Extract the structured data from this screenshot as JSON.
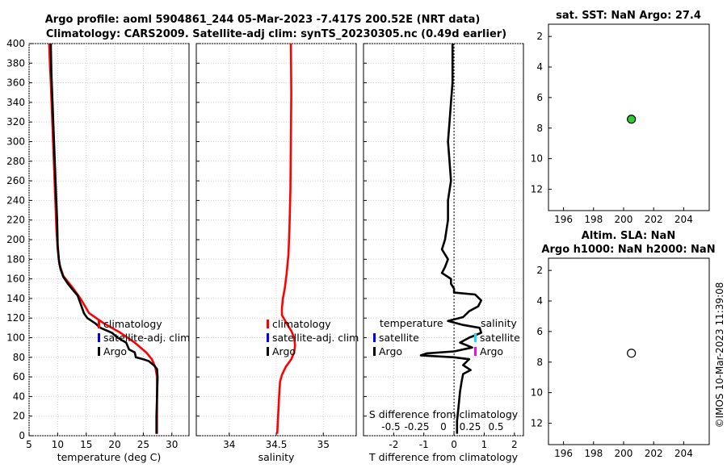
{
  "header": {
    "title_line1": "Argo profile: aoml 5904861_244 05-Mar-2023 -7.417S 200.52E (NRT data)",
    "title_line2": "Climatology: CARS2009. Satellite-adj clim: synTS_20230305.nc (0.49d earlier)"
  },
  "credit": "©IMOS 10-Mar-2023 11:39:08",
  "colors": {
    "red": "#ff0000",
    "black": "#000000",
    "blue": "#0000ff",
    "cyan": "#00e5ff",
    "magenta": "#ff00ff",
    "green": "#2ecc2e"
  },
  "chart_data": [
    {
      "id": "temp",
      "type": "line",
      "xlabel": "temperature (deg C)",
      "xlim": [
        5,
        33
      ],
      "ylim": [
        400,
        0
      ],
      "xticks": [
        5,
        10,
        15,
        20,
        25,
        30
      ],
      "yticks": [
        0,
        20,
        40,
        60,
        80,
        100,
        120,
        140,
        160,
        180,
        200,
        220,
        240,
        260,
        280,
        300,
        320,
        340,
        360,
        380,
        400
      ],
      "legend": {
        "position": "right-middle",
        "entries": [
          "climatology",
          "satellite-adj. clim",
          "Argo"
        ]
      },
      "series": [
        {
          "name": "climatology",
          "color": "#ff0000",
          "points": [
            [
              27.4,
              2
            ],
            [
              27.4,
              20
            ],
            [
              27.4,
              40
            ],
            [
              27.4,
              60
            ],
            [
              27.1,
              70
            ],
            [
              26.5,
              78
            ],
            [
              25.5,
              85
            ],
            [
              23.5,
              95
            ],
            [
              21,
              105
            ],
            [
              18,
              115
            ],
            [
              15.5,
              125
            ],
            [
              14,
              140
            ],
            [
              12.5,
              152
            ],
            [
              11,
              163
            ],
            [
              10.3,
              175
            ],
            [
              10,
              190
            ],
            [
              9.8,
              210
            ],
            [
              9.6,
              240
            ],
            [
              9.4,
              270
            ],
            [
              9.2,
              300
            ],
            [
              9,
              330
            ],
            [
              8.8,
              360
            ],
            [
              8.6,
              385
            ],
            [
              8.5,
              400
            ]
          ]
        },
        {
          "name": "Argo",
          "color": "#000000",
          "points": [
            [
              27.3,
              2
            ],
            [
              27.3,
              20
            ],
            [
              27.4,
              40
            ],
            [
              27.5,
              60
            ],
            [
              27.4,
              68
            ],
            [
              26.8,
              72
            ],
            [
              26,
              76
            ],
            [
              25,
              78
            ],
            [
              23.7,
              80
            ],
            [
              23.5,
              85
            ],
            [
              22.5,
              88
            ],
            [
              22,
              95
            ],
            [
              20.5,
              100
            ],
            [
              19.5,
              105
            ],
            [
              17.5,
              110
            ],
            [
              16.5,
              115
            ],
            [
              15.2,
              120
            ],
            [
              14.6,
              125
            ],
            [
              14,
              135
            ],
            [
              13.5,
              143
            ],
            [
              12.5,
              150
            ],
            [
              11.8,
              155
            ],
            [
              11,
              162
            ],
            [
              10.5,
              170
            ],
            [
              10.2,
              180
            ],
            [
              10,
              195
            ],
            [
              9.9,
              220
            ],
            [
              9.7,
              250
            ],
            [
              9.5,
              280
            ],
            [
              9.3,
              310
            ],
            [
              9.1,
              340
            ],
            [
              8.9,
              370
            ],
            [
              8.8,
              400
            ]
          ]
        }
      ]
    },
    {
      "id": "sal",
      "type": "line",
      "xlabel": "salinity",
      "xlim": [
        33.65,
        35.35
      ],
      "ylim": [
        400,
        0
      ],
      "xticks": [
        34,
        34.5,
        35
      ],
      "legend": {
        "position": "right-middle",
        "entries": [
          "climatology",
          "satellite-adj. clim",
          "Argo"
        ]
      },
      "series": [
        {
          "name": "climatology",
          "color": "#ff0000",
          "points": [
            [
              34.51,
              2
            ],
            [
              34.52,
              20
            ],
            [
              34.53,
              40
            ],
            [
              34.54,
              55
            ],
            [
              34.56,
              62
            ],
            [
              34.6,
              70
            ],
            [
              34.66,
              78
            ],
            [
              34.69,
              85
            ],
            [
              34.7,
              92
            ],
            [
              34.69,
              100
            ],
            [
              34.66,
              107
            ],
            [
              34.62,
              113
            ],
            [
              34.59,
              118
            ],
            [
              34.56,
              123
            ],
            [
              34.56,
              130
            ],
            [
              34.57,
              140
            ],
            [
              34.59,
              150
            ],
            [
              34.61,
              165
            ],
            [
              34.63,
              185
            ],
            [
              34.64,
              210
            ],
            [
              34.65,
              250
            ],
            [
              34.655,
              300
            ],
            [
              34.66,
              350
            ],
            [
              34.655,
              400
            ]
          ]
        }
      ]
    },
    {
      "id": "diff",
      "type": "line",
      "xlabel": "T difference from climatology",
      "xlim": [
        -3,
        2.3
      ],
      "ylim": [
        400,
        0
      ],
      "xticks": [
        -2,
        -1,
        0,
        1,
        2
      ],
      "secondary_xlabel": "S difference from climatology",
      "secondary_xticks": [
        "-0.5",
        "-0.25",
        "0",
        "0.25",
        "0.5"
      ],
      "legend": {
        "position": "right-middle",
        "titles": [
          "temperature",
          "salinity"
        ],
        "entries_left": [
          "satellite",
          "Argo"
        ],
        "entries_right": [
          "satellite",
          "Argo"
        ]
      },
      "series": [
        {
          "name": "Argo T diff",
          "color": "#000000",
          "points": [
            [
              0.1,
              2
            ],
            [
              0.1,
              15
            ],
            [
              0.15,
              30
            ],
            [
              0.2,
              45
            ],
            [
              0.25,
              55
            ],
            [
              0.3,
              63
            ],
            [
              0.55,
              67
            ],
            [
              0.3,
              72
            ],
            [
              0.5,
              78
            ],
            [
              0,
              80
            ],
            [
              -1.1,
              82
            ],
            [
              -0.9,
              84
            ],
            [
              0,
              86
            ],
            [
              0.6,
              90
            ],
            [
              0.2,
              95
            ],
            [
              0.5,
              100
            ],
            [
              0.9,
              105
            ],
            [
              0.85,
              110
            ],
            [
              0.3,
              113
            ],
            [
              -0.2,
              117
            ],
            [
              0.3,
              121
            ],
            [
              0.5,
              127
            ],
            [
              0.8,
              132
            ],
            [
              0.9,
              138
            ],
            [
              0.7,
              144
            ],
            [
              0,
              146
            ],
            [
              0,
              150
            ],
            [
              -0.1,
              155
            ],
            [
              -0.1,
              160
            ],
            [
              -0.4,
              166
            ],
            [
              -0.3,
              172
            ],
            [
              -0.2,
              180
            ],
            [
              -0.4,
              190
            ],
            [
              -0.3,
              200
            ],
            [
              -0.2,
              220
            ],
            [
              -0.2,
              240
            ],
            [
              -0.1,
              260
            ],
            [
              -0.15,
              280
            ],
            [
              -0.2,
              300
            ],
            [
              -0.15,
              320
            ],
            [
              -0.1,
              340
            ],
            [
              -0.05,
              360
            ],
            [
              -0.05,
              380
            ],
            [
              -0.05,
              400
            ]
          ]
        }
      ]
    },
    {
      "id": "sst",
      "type": "scatter",
      "title": "sat. SST: NaN Argo: 27.4",
      "xlim": [
        195,
        205.7
      ],
      "ylim": [
        1.2,
        13.4
      ],
      "xticks": [
        196,
        198,
        200,
        202,
        204
      ],
      "yticks": [
        2,
        4,
        6,
        8,
        10,
        12
      ],
      "points": [
        {
          "x": 200.52,
          "y": 7.417,
          "fill": "#2ecc2e"
        }
      ]
    },
    {
      "id": "sla",
      "type": "scatter",
      "title_line1": "Altim. SLA: NaN",
      "title_line2": "Argo h1000: NaN h2000: NaN",
      "xlim": [
        195,
        205.7
      ],
      "ylim": [
        1.2,
        13.4
      ],
      "xticks": [
        196,
        198,
        200,
        202,
        204
      ],
      "yticks": [
        2,
        4,
        6,
        8,
        10,
        12
      ],
      "points": [
        {
          "x": 200.52,
          "y": 7.417,
          "fill": "#ffffff"
        }
      ]
    }
  ]
}
